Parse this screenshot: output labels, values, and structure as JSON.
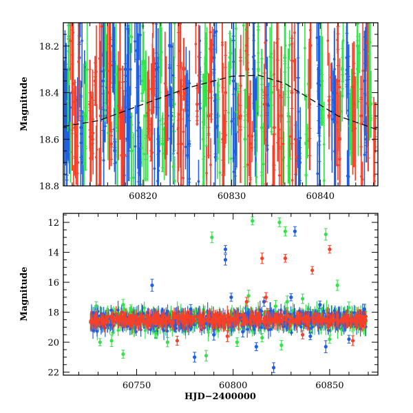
{
  "chart_data": [
    {
      "type": "scatter",
      "ylabel": "Magnitude",
      "xlabel": "",
      "xlim": [
        60811,
        60846.5
      ],
      "ylim": [
        18.8,
        18.1
      ],
      "y_inverted": true,
      "xticks": [
        60820,
        60830,
        60840
      ],
      "xtick_labels": [
        "60820",
        "60830",
        "60840"
      ],
      "yticks": [
        18.2,
        18.4,
        18.6,
        18.8
      ],
      "ytick_labels": [
        "18.2",
        "18.4",
        "18.6",
        "18.8"
      ],
      "grid": false,
      "legend": "none",
      "series": [
        {
          "color": "#1f5fe0",
          "points": [
            [
              60811.3,
              18.45
            ],
            [
              60811.4,
              18.62
            ],
            [
              60811.6,
              18.3
            ],
            [
              60812.8,
              18.25
            ],
            [
              60813.0,
              18.55
            ],
            [
              60813.2,
              18.7
            ],
            [
              60815.5,
              18.35
            ],
            [
              60815.7,
              18.5
            ],
            [
              60816.6,
              18.2
            ],
            [
              60816.8,
              18.65
            ],
            [
              60818.0,
              18.3
            ],
            [
              60818.2,
              18.6
            ],
            [
              60818.4,
              18.45
            ],
            [
              60819.3,
              18.22
            ],
            [
              60819.5,
              18.55
            ],
            [
              60819.7,
              18.7
            ],
            [
              60821.5,
              18.3
            ],
            [
              60821.7,
              18.6
            ],
            [
              60823.0,
              18.2
            ],
            [
              60823.2,
              18.5
            ],
            [
              60825.0,
              18.5
            ],
            [
              60825.2,
              18.62
            ],
            [
              60826.4,
              18.35
            ],
            [
              60828.0,
              18.25
            ],
            [
              60828.2,
              18.55
            ],
            [
              60830.2,
              18.35
            ],
            [
              60830.4,
              18.65
            ],
            [
              60832.5,
              18.3
            ],
            [
              60832.7,
              18.55
            ],
            [
              60834.0,
              18.45
            ],
            [
              60837.5,
              18.4
            ],
            [
              60837.7,
              18.7
            ],
            [
              60839.8,
              18.3
            ],
            [
              60839.9,
              18.55
            ],
            [
              60841.5,
              18.4
            ],
            [
              60841.7,
              18.65
            ],
            [
              60843.0,
              18.25
            ],
            [
              60843.2,
              18.5
            ],
            [
              60845.0,
              18.35
            ],
            [
              60845.2,
              18.6
            ]
          ]
        },
        {
          "color": "#33e24a",
          "points": [
            [
              60811.6,
              18.4
            ],
            [
              60813.5,
              18.5
            ],
            [
              60815.9,
              18.3
            ],
            [
              60817.1,
              18.55
            ],
            [
              60818.7,
              18.65
            ],
            [
              60819.9,
              18.35
            ],
            [
              60820.3,
              18.5
            ],
            [
              60821.9,
              18.25
            ],
            [
              60822.2,
              18.62
            ],
            [
              60823.5,
              18.45
            ],
            [
              60826.8,
              18.6
            ],
            [
              60827.1,
              18.3
            ],
            [
              60828.5,
              18.5
            ],
            [
              60829.8,
              18.25
            ],
            [
              60830.7,
              18.45
            ],
            [
              60831.5,
              18.6
            ],
            [
              60833.0,
              18.3
            ],
            [
              60833.4,
              18.55
            ],
            [
              60834.5,
              18.4
            ],
            [
              60836.0,
              18.25
            ],
            [
              60836.4,
              18.5
            ],
            [
              60838.4,
              18.62
            ],
            [
              60840.2,
              18.35
            ],
            [
              60842.5,
              18.3
            ],
            [
              60843.5,
              18.55
            ],
            [
              60844.2,
              18.2
            ],
            [
              60845.7,
              18.45
            ]
          ]
        },
        {
          "color": "#f5402a",
          "points": [
            [
              60812.0,
              18.4
            ],
            [
              60812.3,
              18.55
            ],
            [
              60812.6,
              18.7
            ],
            [
              60814.0,
              18.45
            ],
            [
              60814.3,
              18.6
            ],
            [
              60814.6,
              18.35
            ],
            [
              60815.2,
              18.5
            ],
            [
              60816.2,
              18.4
            ],
            [
              60816.4,
              18.62
            ],
            [
              60817.4,
              18.3
            ],
            [
              60817.7,
              18.55
            ],
            [
              60820.6,
              18.45
            ],
            [
              60820.9,
              18.6
            ],
            [
              60821.2,
              18.35
            ],
            [
              60822.6,
              18.5
            ],
            [
              60824.0,
              18.4
            ],
            [
              60824.3,
              18.62
            ],
            [
              60824.6,
              18.3
            ],
            [
              60826.1,
              18.45
            ],
            [
              60827.4,
              18.5
            ],
            [
              60827.7,
              18.35
            ],
            [
              60829.0,
              18.6
            ],
            [
              60829.3,
              18.4
            ],
            [
              60831.0,
              18.5
            ],
            [
              60831.8,
              18.3
            ],
            [
              60832.1,
              18.62
            ],
            [
              60833.7,
              18.45
            ],
            [
              60834.8,
              18.55
            ],
            [
              60835.2,
              18.35
            ],
            [
              60835.6,
              18.5
            ],
            [
              60836.8,
              18.4
            ],
            [
              60837.2,
              18.6
            ],
            [
              60838.8,
              18.45
            ],
            [
              60841.0,
              18.5
            ],
            [
              60842.0,
              18.35
            ],
            [
              60842.2,
              18.6
            ],
            [
              60843.8,
              18.45
            ],
            [
              60844.6,
              18.5
            ],
            [
              60845.4,
              18.4
            ],
            [
              60846.2,
              18.55
            ]
          ]
        }
      ],
      "model_curve": [
        [
          60811,
          18.545
        ],
        [
          60815,
          18.52
        ],
        [
          60820,
          18.45
        ],
        [
          60825,
          18.38
        ],
        [
          60830,
          18.33
        ],
        [
          60833,
          18.325
        ],
        [
          60836,
          18.36
        ],
        [
          60839,
          18.43
        ],
        [
          60842,
          18.5
        ],
        [
          60846.5,
          18.56
        ]
      ]
    },
    {
      "type": "scatter",
      "ylabel": "Magnitude",
      "xlabel": "HJD−2400000",
      "xlim": [
        60712,
        60875
      ],
      "ylim": [
        22.2,
        11.4
      ],
      "y_inverted": true,
      "xticks": [
        60750,
        60800,
        60850
      ],
      "xtick_labels": [
        "60750",
        "60800",
        "60850"
      ],
      "yticks": [
        12,
        14,
        16,
        18,
        20,
        22
      ],
      "ytick_labels": [
        "12",
        "14",
        "16",
        "18",
        "20",
        "22"
      ],
      "grid": false,
      "legend": "none",
      "series": [
        {
          "color": "#1f5fe0",
          "points": [
            [
              60758,
              16.2
            ],
            [
              60796,
              13.8
            ],
            [
              60796,
              14.5
            ],
            [
              60799,
              17.0
            ],
            [
              60816,
              17.3
            ],
            [
              60832,
              12.6
            ],
            [
              60830,
              17.0
            ],
            [
              60780,
              21.0
            ],
            [
              60821,
              21.7
            ],
            [
              60812,
              20.3
            ],
            [
              60848,
              20.3
            ],
            [
              60790,
              19.5
            ],
            [
              60770,
              18.9
            ],
            [
              60805,
              19.3
            ],
            [
              60840,
              19.6
            ],
            [
              60860,
              19.8
            ],
            [
              60778,
              17.8
            ],
            [
              60845,
              17.5
            ],
            [
              60760,
              19.3
            ],
            [
              60868,
              17.8
            ]
          ]
        },
        {
          "color": "#33e24a",
          "points": [
            [
              60810,
              11.9
            ],
            [
              60824,
              12.0
            ],
            [
              60827,
              12.6
            ],
            [
              60789,
              13.0
            ],
            [
              60848,
              12.8
            ],
            [
              60854,
              16.2
            ],
            [
              60808,
              16.9
            ],
            [
              60828,
              17.3
            ],
            [
              60836,
              17.1
            ],
            [
              60743,
              17.5
            ],
            [
              60822,
              17.6
            ],
            [
              60786,
              20.9
            ],
            [
              60729,
              17.6
            ],
            [
              60731,
              20.0
            ],
            [
              60737,
              19.9
            ],
            [
              60743,
              20.8
            ],
            [
              60766,
              20.0
            ],
            [
              60802,
              20.0
            ],
            [
              60747,
              17.8
            ],
            [
              60815,
              19.7
            ],
            [
              60825,
              20.2
            ],
            [
              60860,
              17.7
            ],
            [
              60850,
              19.8
            ],
            [
              60760,
              19.4
            ]
          ]
        },
        {
          "color": "#f5402a",
          "points": [
            [
              60815,
              14.4
            ],
            [
              60827,
              14.4
            ],
            [
              60841,
              15.2
            ],
            [
              60850,
              13.8
            ],
            [
              60807,
              17.3
            ],
            [
              60817,
              17.0
            ],
            [
              60756,
              18.9
            ],
            [
              60771,
              19.9
            ],
            [
              60836,
              19.5
            ],
            [
              60790,
              18.4
            ],
            [
              60862,
              19.9
            ],
            [
              60742,
              18.4
            ],
            [
              60818,
              18.0
            ],
            [
              60797,
              19.6
            ],
            [
              60866,
              18.9
            ]
          ]
        }
      ],
      "dense_bands": [
        {
          "color": "#33e24a",
          "x_range": [
            60726,
            60869
          ],
          "mag_center": 18.5,
          "mag_scatter": 0.75
        },
        {
          "color": "#1f5fe0",
          "x_range": [
            60726,
            60869
          ],
          "mag_center": 18.55,
          "mag_scatter": 0.65
        },
        {
          "color": "#f5402a",
          "x_range": [
            60726,
            60869
          ],
          "mag_center": 18.5,
          "mag_scatter": 0.35
        }
      ]
    }
  ]
}
